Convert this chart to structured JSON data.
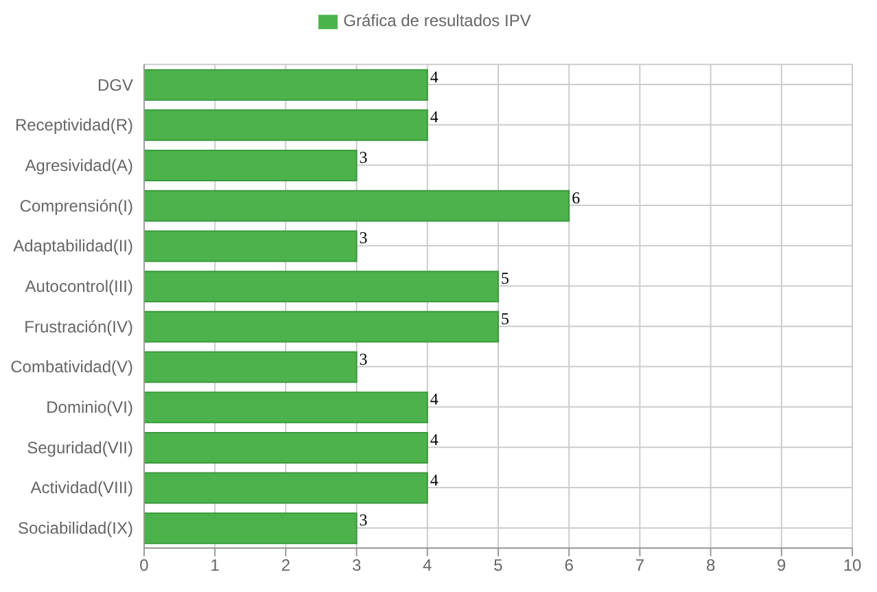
{
  "chart_data": {
    "type": "bar",
    "orientation": "horizontal",
    "categories": [
      "DGV",
      "Receptividad(R)",
      "Agresividad(A)",
      "Comprensión(I)",
      "Adaptabilidad(II)",
      "Autocontrol(III)",
      "Frustración(IV)",
      "Combatividad(V)",
      "Dominio(VI)",
      "Seguridad(VII)",
      "Actividad(VIII)",
      "Sociabilidad(IX)"
    ],
    "series": [
      {
        "name": "Gráfica de resultados IPV",
        "color": "#4cb34c",
        "values": [
          4,
          4,
          3,
          6,
          3,
          5,
          5,
          3,
          4,
          4,
          4,
          3
        ]
      }
    ],
    "xlim": [
      0,
      10
    ],
    "xticks": [
      0,
      1,
      2,
      3,
      4,
      5,
      6,
      7,
      8,
      9,
      10
    ],
    "grid": true,
    "legend": "top",
    "data_labels": true
  }
}
